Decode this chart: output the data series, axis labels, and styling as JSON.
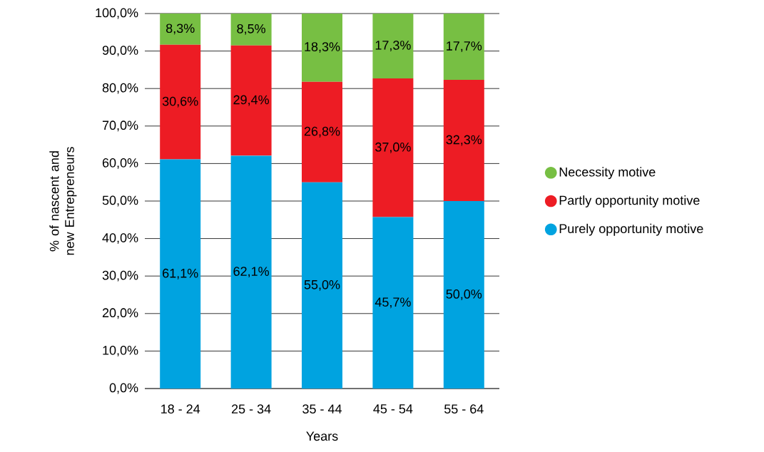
{
  "chart_data": {
    "type": "bar",
    "stacked": true,
    "xlabel": "Years",
    "ylabel": "% of nascent and new Entrepreneurs",
    "categories": [
      "18 - 24",
      "25 - 34",
      "35 - 44",
      "45 - 54",
      "55 - 64"
    ],
    "series": [
      {
        "name": "Purely opportunity motive",
        "color": "#00a3e0",
        "values": [
          61.1,
          62.1,
          55.0,
          45.7,
          50.0
        ],
        "value_labels": [
          "61,1%",
          "62,1%",
          "55,0%",
          "45,7%",
          "50,0%"
        ]
      },
      {
        "name": "Partly opportunity motive",
        "color": "#ed1c24",
        "values": [
          30.6,
          29.4,
          26.8,
          37.0,
          32.3
        ],
        "value_labels": [
          "30,6%",
          "29,4%",
          "26,8%",
          "37,0%",
          "32,3%"
        ]
      },
      {
        "name": "Necessity motive",
        "color": "#77bf43",
        "values": [
          8.3,
          8.5,
          18.3,
          17.3,
          17.7
        ],
        "value_labels": [
          "8,3%",
          "8,5%",
          "18,3%",
          "17,3%",
          "17,7%"
        ]
      }
    ],
    "ylim": [
      0,
      100
    ],
    "yticks": [
      {
        "value": 0,
        "label": "0,0%"
      },
      {
        "value": 10,
        "label": "10,0%"
      },
      {
        "value": 20,
        "label": "20,0%"
      },
      {
        "value": 30,
        "label": "30,0%"
      },
      {
        "value": 40,
        "label": "40,0%"
      },
      {
        "value": 50,
        "label": "50,0%"
      },
      {
        "value": 60,
        "label": "60,0%"
      },
      {
        "value": 70,
        "label": "70,0%"
      },
      {
        "value": 80,
        "label": "80,0%"
      },
      {
        "value": 90,
        "label": "90,0%"
      },
      {
        "value": 100,
        "label": "100,0%"
      }
    ],
    "grid": "y",
    "legend": "right"
  }
}
